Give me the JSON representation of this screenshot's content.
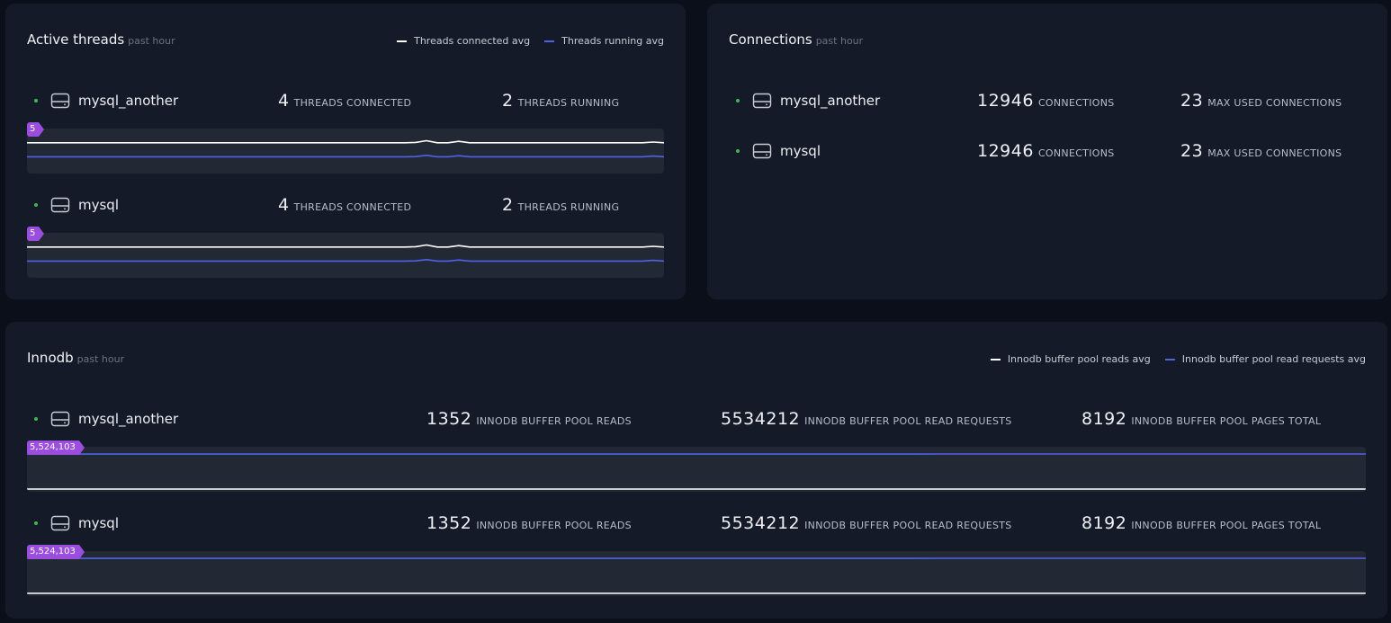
{
  "colors": {
    "line_white": "#ffffff",
    "line_blue": "#4f63e8",
    "badge": "#9b4dde",
    "status": "#3fb950"
  },
  "active_threads": {
    "title": "Active threads",
    "subtitle": "past hour",
    "legend": [
      "Threads connected avg",
      "Threads running avg"
    ],
    "rows": [
      {
        "name": "mysql_another",
        "connected": "4",
        "connected_label": "THREADS CONNECTED",
        "running": "2",
        "running_label": "THREADS RUNNING",
        "badge": "5",
        "series_connected": [
          4,
          4,
          4,
          4,
          4,
          4,
          4,
          4,
          4,
          4,
          4,
          4,
          4,
          4,
          4,
          4,
          4,
          4,
          4,
          4,
          4,
          4,
          4,
          4,
          4,
          4,
          4,
          4,
          4,
          4,
          4,
          4,
          4,
          4,
          4,
          4,
          4.05,
          4.3,
          4,
          4,
          4.2,
          4,
          4,
          4,
          4,
          4,
          4,
          4,
          4,
          4,
          4,
          4,
          4,
          4,
          4,
          4,
          4,
          4,
          4.1,
          4
        ],
        "series_running": [
          2,
          2,
          2,
          2,
          2,
          2,
          2,
          2,
          2,
          2,
          2,
          2,
          2,
          2,
          2,
          2,
          2,
          2,
          2,
          2,
          2,
          2,
          2,
          2,
          2,
          2,
          2,
          2,
          2,
          2,
          2,
          2,
          2,
          2,
          2,
          2,
          2.02,
          2.2,
          2,
          2,
          2.15,
          2,
          2,
          2,
          2,
          2,
          2,
          2,
          2,
          2,
          2,
          2,
          2,
          2,
          2,
          2,
          2,
          2,
          2.1,
          2
        ]
      },
      {
        "name": "mysql",
        "connected": "4",
        "connected_label": "THREADS CONNECTED",
        "running": "2",
        "running_label": "THREADS RUNNING",
        "badge": "5",
        "series_connected": [
          4,
          4,
          4,
          4,
          4,
          4,
          4,
          4,
          4,
          4,
          4,
          4,
          4,
          4,
          4,
          4,
          4,
          4,
          4,
          4,
          4,
          4,
          4,
          4,
          4,
          4,
          4,
          4,
          4,
          4,
          4,
          4,
          4,
          4,
          4,
          4,
          4.05,
          4.3,
          4,
          4,
          4.2,
          4,
          4,
          4,
          4,
          4,
          4,
          4,
          4,
          4,
          4,
          4,
          4,
          4,
          4,
          4,
          4,
          4,
          4.1,
          4
        ],
        "series_running": [
          2,
          2,
          2,
          2,
          2,
          2,
          2,
          2,
          2,
          2,
          2,
          2,
          2,
          2,
          2,
          2,
          2,
          2,
          2,
          2,
          2,
          2,
          2,
          2,
          2,
          2,
          2,
          2,
          2,
          2,
          2,
          2,
          2,
          2,
          2,
          2,
          2.02,
          2.2,
          2,
          2,
          2.15,
          2,
          2,
          2,
          2,
          2,
          2,
          2,
          2,
          2,
          2,
          2,
          2,
          2,
          2,
          2,
          2,
          2,
          2.1,
          2
        ]
      }
    ]
  },
  "connections": {
    "title": "Connections",
    "subtitle": "past hour",
    "rows": [
      {
        "name": "mysql_another",
        "connections": "12946",
        "connections_label": "CONNECTIONS",
        "max_used": "23",
        "max_used_label": "MAX USED CONNECTIONS"
      },
      {
        "name": "mysql",
        "connections": "12946",
        "connections_label": "CONNECTIONS",
        "max_used": "23",
        "max_used_label": "MAX USED CONNECTIONS"
      }
    ]
  },
  "innodb": {
    "title": "Innodb",
    "subtitle": "past hour",
    "legend": [
      "Innodb buffer pool reads avg",
      "Innodb buffer pool read requests avg"
    ],
    "rows": [
      {
        "name": "mysql_another",
        "reads": "1352",
        "reads_label": "INNODB BUFFER POOL READS",
        "requests": "5534212",
        "requests_label": "INNODB BUFFER POOL READ REQUESTS",
        "pages": "8192",
        "pages_label": "INNODB BUFFER POOL PAGES TOTAL",
        "badge": "5,524,103",
        "series_reads": [
          1352,
          1352,
          1352,
          1352,
          1352,
          1352,
          1352,
          1352,
          1352,
          1352,
          1352,
          1352,
          1352,
          1352,
          1352,
          1352,
          1352,
          1352,
          1352,
          1352
        ],
        "series_requests": [
          5520400,
          5520800,
          5521200,
          5521600,
          5522100,
          5522600,
          5523200,
          5523800,
          5524300,
          5524900,
          5525500,
          5526100,
          5526700,
          5527300,
          5528500,
          5529100,
          5529700,
          5530300,
          5530900,
          5531700
        ]
      },
      {
        "name": "mysql",
        "reads": "1352",
        "reads_label": "INNODB BUFFER POOL READS",
        "requests": "5534212",
        "requests_label": "INNODB BUFFER POOL READ REQUESTS",
        "pages": "8192",
        "pages_label": "INNODB BUFFER POOL PAGES TOTAL",
        "badge": "5,524,103",
        "series_reads": [
          1352,
          1352,
          1352,
          1352,
          1352,
          1352,
          1352,
          1352,
          1352,
          1352,
          1352,
          1352,
          1352,
          1352,
          1352,
          1352,
          1352,
          1352,
          1352,
          1352
        ],
        "series_requests": [
          5520400,
          5520800,
          5521200,
          5521600,
          5522100,
          5522600,
          5523200,
          5523800,
          5524300,
          5524900,
          5525500,
          5526100,
          5526700,
          5527300,
          5528500,
          5529100,
          5529700,
          5530300,
          5530900,
          5531700
        ]
      }
    ]
  }
}
